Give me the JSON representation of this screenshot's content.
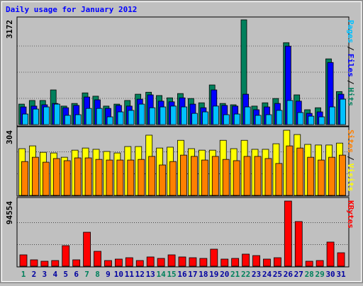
{
  "chart_data": [
    {
      "type": "bar",
      "title": "Daily usage for January 2012",
      "legend_separator": "/",
      "ylim": [
        0,
        3172
      ],
      "yticks": [
        3172
      ],
      "series": [
        {
          "name": "Hits",
          "color": "#00805c",
          "values": [
            620,
            730,
            730,
            1050,
            560,
            640,
            960,
            860,
            560,
            620,
            730,
            920,
            980,
            880,
            810,
            940,
            790,
            660,
            1200,
            640,
            600,
            3172,
            560,
            660,
            790,
            2480,
            900,
            450,
            510,
            1990,
            1000
          ]
        },
        {
          "name": "Files",
          "color": "#0000ff",
          "values": [
            535,
            560,
            600,
            640,
            510,
            580,
            835,
            750,
            490,
            580,
            560,
            770,
            900,
            710,
            690,
            810,
            620,
            510,
            1050,
            580,
            560,
            920,
            450,
            535,
            640,
            2375,
            710,
            340,
            385,
            1880,
            920
          ]
        },
        {
          "name": "Pages",
          "color": "#00c0ff",
          "values": [
            320,
            470,
            535,
            620,
            280,
            300,
            490,
            490,
            235,
            385,
            430,
            620,
            510,
            535,
            560,
            535,
            340,
            385,
            560,
            300,
            320,
            535,
            280,
            300,
            430,
            730,
            365,
            255,
            235,
            535,
            770
          ]
        }
      ]
    },
    {
      "type": "bar",
      "legend_separator": "/",
      "ylim": [
        0,
        304
      ],
      "yticks": [
        304
      ],
      "series": [
        {
          "name": "Visits",
          "color": "#ffff00",
          "values": [
            218,
            231,
            201,
            198,
            178,
            211,
            221,
            215,
            205,
            198,
            228,
            228,
            281,
            221,
            225,
            257,
            218,
            211,
            211,
            257,
            218,
            257,
            215,
            215,
            241,
            304,
            284,
            238,
            235,
            235,
            244
          ]
        },
        {
          "name": "Sites",
          "color": "#ff8000",
          "values": [
            158,
            178,
            155,
            172,
            162,
            175,
            175,
            168,
            165,
            165,
            165,
            168,
            182,
            142,
            158,
            188,
            182,
            165,
            182,
            168,
            162,
            182,
            182,
            172,
            149,
            231,
            221,
            178,
            165,
            178,
            188
          ]
        }
      ]
    },
    {
      "type": "bar",
      "ylim": [
        0,
        94554
      ],
      "yticks": [
        94554
      ],
      "categories": [
        "1",
        "2",
        "3",
        "4",
        "5",
        "6",
        "7",
        "8",
        "9",
        "10",
        "11",
        "12",
        "13",
        "14",
        "15",
        "16",
        "17",
        "18",
        "19",
        "20",
        "21",
        "22",
        "23",
        "24",
        "25",
        "26",
        "27",
        "28",
        "29",
        "30",
        "31"
      ],
      "category_colors": [
        "#00805c",
        "#0000a0",
        "#0000a0",
        "#0000a0",
        "#0000a0",
        "#0000a0",
        "#00805c",
        "#00805c",
        "#0000a0",
        "#0000a0",
        "#0000a0",
        "#0000a0",
        "#0000a0",
        "#00805c",
        "#00805c",
        "#0000a0",
        "#0000a0",
        "#0000a0",
        "#0000a0",
        "#0000a0",
        "#00805c",
        "#00805c",
        "#0000a0",
        "#0000a0",
        "#0000a0",
        "#0000a0",
        "#0000a0",
        "#00805c",
        "#00805c",
        "#0000a0",
        "#0000a0"
      ],
      "series": [
        {
          "name": "KBytes",
          "color": "#ff0000",
          "values": [
            16450,
            9250,
            7200,
            8200,
            29800,
            9250,
            49300,
            21600,
            8200,
            10300,
            12300,
            8200,
            13400,
            11300,
            16450,
            13400,
            12300,
            11300,
            24700,
            10300,
            11300,
            17500,
            15400,
            10300,
            12300,
            94554,
            64800,
            7200,
            8200,
            35000,
            19500
          ]
        }
      ]
    }
  ]
}
